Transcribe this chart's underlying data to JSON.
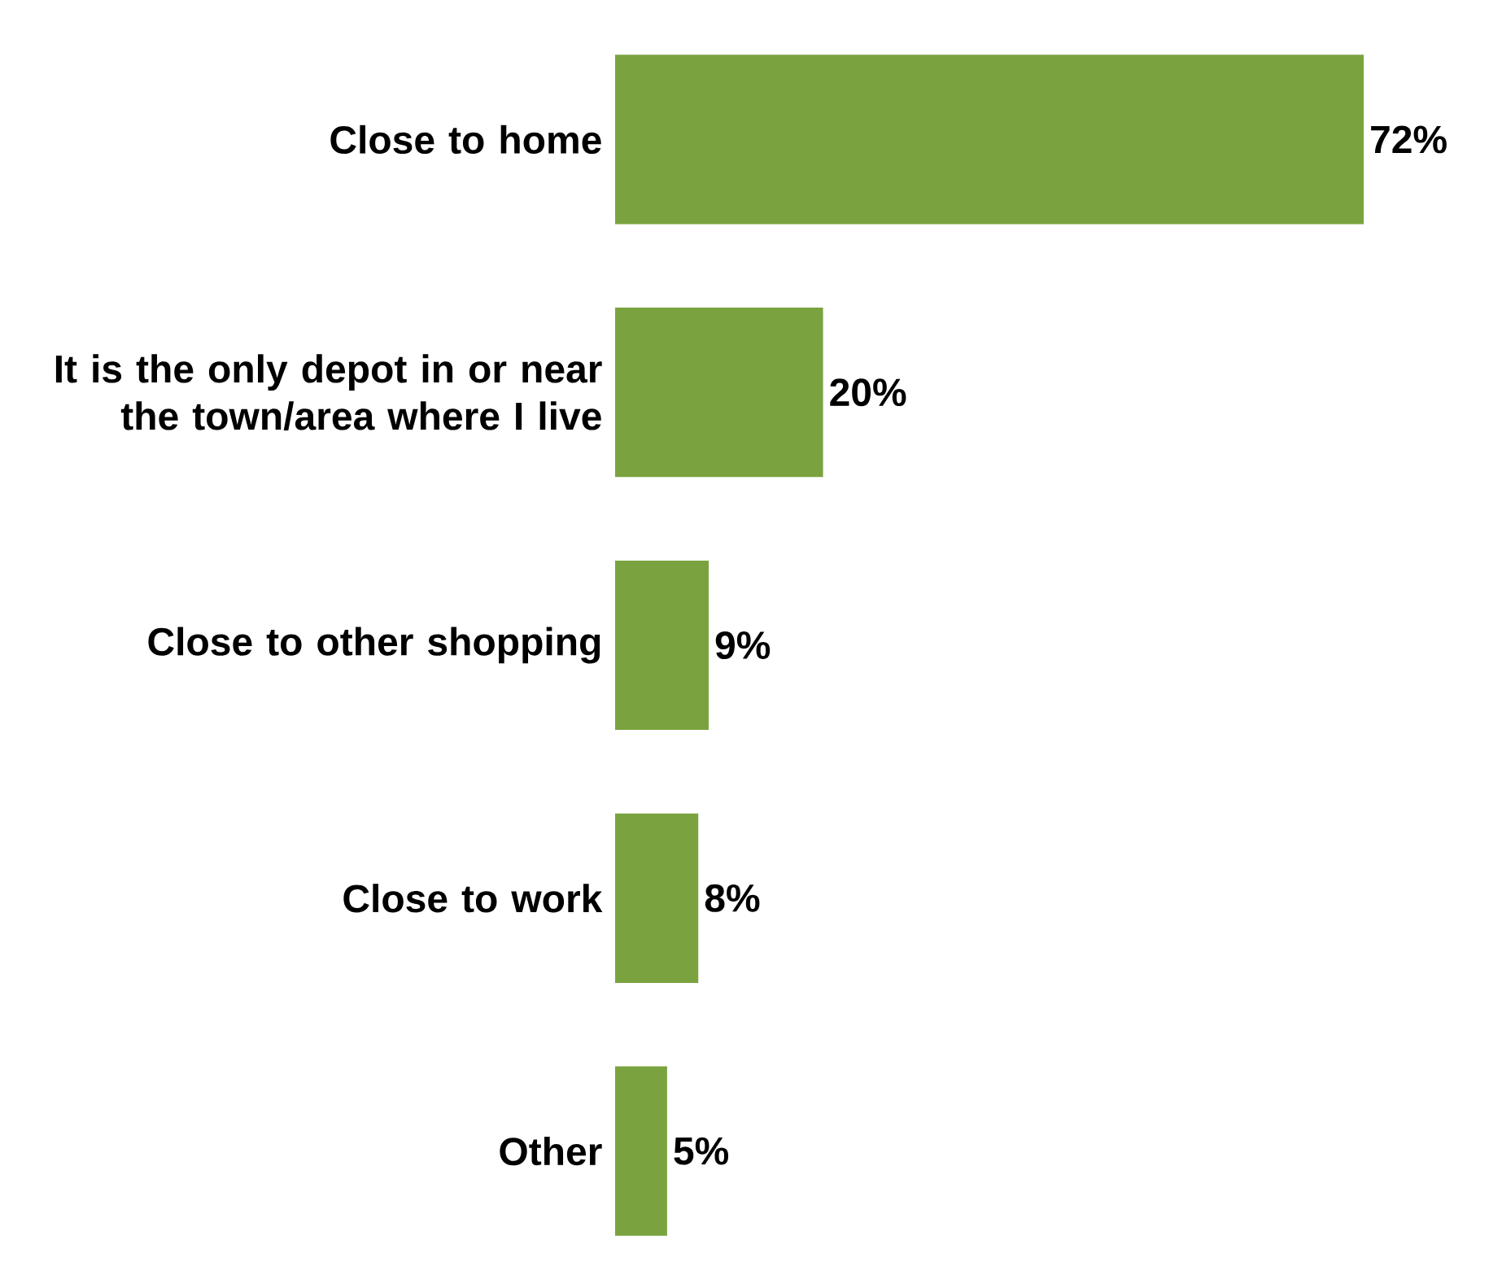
{
  "chart_data": {
    "type": "bar",
    "orientation": "horizontal",
    "categories": [
      "Close to home",
      "It is the only depot in or near the town/area where I live",
      "Close to other shopping",
      "Close to work",
      "Other"
    ],
    "values": [
      72,
      20,
      9,
      8,
      5
    ],
    "value_labels": [
      "72%",
      "20%",
      "9%",
      "8%",
      "5%"
    ],
    "color": "#7aa33f"
  }
}
